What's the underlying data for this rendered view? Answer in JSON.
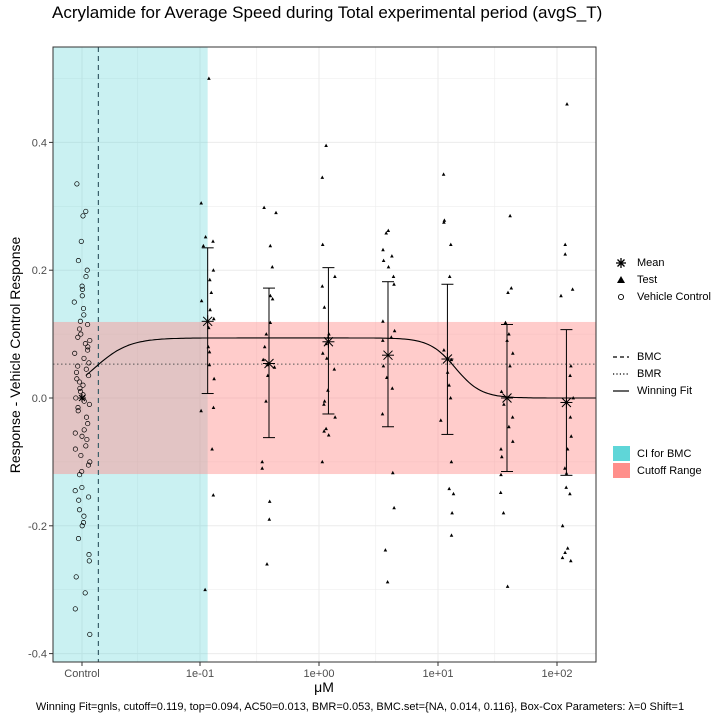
{
  "chart_data": {
    "type": "scatter",
    "title": "Acrylamide for Average Speed during Total experimental period (avgS_T)",
    "xlabel": "μM",
    "ylabel": "Response - Vehicle Control Response",
    "x_scale": "log10",
    "x_tick_labels": [
      "Control",
      "1e-01",
      "1e+00",
      "1e+01",
      "1e+02"
    ],
    "x_tick_values": [
      null,
      0.1,
      1,
      10,
      100
    ],
    "y_ticks": [
      -0.4,
      -0.2,
      0.0,
      0.2,
      0.4
    ],
    "y_tick_labels": [
      "-0.4",
      "-0.2",
      "0.0",
      "0.2",
      "0.4"
    ],
    "ylim": [
      -0.41,
      0.54
    ],
    "grid": true,
    "bmc": 0.014,
    "bmr": 0.053,
    "ci_for_bmc": [
      null,
      0.116
    ],
    "cutoff": 0.119,
    "concentrations": [
      0.116,
      0.38,
      1.2,
      3.8,
      12,
      38,
      120
    ],
    "means": [
      {
        "x": 0.116,
        "mean": 0.12,
        "low": 0.007,
        "high": 0.235
      },
      {
        "x": 0.38,
        "mean": 0.054,
        "low": -0.062,
        "high": 0.172
      },
      {
        "x": 1.2,
        "mean": 0.088,
        "low": -0.025,
        "high": 0.204
      },
      {
        "x": 3.8,
        "mean": 0.067,
        "low": -0.045,
        "high": 0.182
      },
      {
        "x": 12,
        "mean": 0.061,
        "low": -0.057,
        "high": 0.178
      },
      {
        "x": 38,
        "mean": 0.0,
        "low": -0.115,
        "high": 0.115
      },
      {
        "x": 120,
        "mean": -0.007,
        "low": -0.121,
        "high": 0.107
      }
    ],
    "control_mean": 0.0,
    "test_points": [
      {
        "x": 0.116,
        "y": [
          0.5,
          0.305,
          0.252,
          0.245,
          0.238,
          0.2,
          0.185,
          0.165,
          0.152,
          0.138,
          0.124,
          0.11,
          0.08,
          0.072,
          0.052,
          0.03,
          -0.015,
          -0.02,
          -0.08,
          -0.152,
          -0.3
        ]
      },
      {
        "x": 0.38,
        "y": [
          0.298,
          0.29,
          0.238,
          0.205,
          0.16,
          0.155,
          0.118,
          0.1,
          0.08,
          0.06,
          0.052,
          0.048,
          0.035,
          -0.005,
          -0.1,
          -0.11,
          -0.162,
          -0.19,
          -0.26
        ]
      },
      {
        "x": 1.2,
        "y": [
          0.395,
          0.345,
          0.24,
          0.19,
          0.175,
          0.142,
          0.1,
          0.095,
          0.085,
          0.07,
          0.062,
          0.045,
          0.012,
          -0.005,
          -0.01,
          -0.03,
          -0.048,
          -0.052,
          -0.058,
          -0.1
        ]
      },
      {
        "x": 3.8,
        "y": [
          0.262,
          0.258,
          0.232,
          0.222,
          0.215,
          0.205,
          0.19,
          0.178,
          0.12,
          0.105,
          0.095,
          0.09,
          0.05,
          0.032,
          0.015,
          -0.025,
          -0.117,
          -0.172,
          -0.238,
          -0.288
        ]
      },
      {
        "x": 12,
        "y": [
          0.35,
          0.278,
          0.275,
          0.24,
          0.19,
          0.075,
          0.06,
          0.04,
          0.02,
          0.0,
          -0.035,
          -0.1,
          -0.142,
          -0.15,
          -0.18,
          -0.215
        ]
      },
      {
        "x": 38,
        "y": [
          0.285,
          0.172,
          0.165,
          0.118,
          0.1,
          0.09,
          0.07,
          0.05,
          0.01,
          -0.01,
          -0.03,
          -0.045,
          -0.068,
          -0.08,
          -0.092,
          -0.12,
          -0.148,
          -0.18,
          -0.295
        ]
      },
      {
        "x": 120,
        "y": [
          0.46,
          0.24,
          0.225,
          0.17,
          0.16,
          0.05,
          0.035,
          0.0,
          -0.03,
          -0.06,
          -0.08,
          -0.11,
          -0.118,
          -0.14,
          -0.15,
          -0.2,
          -0.235,
          -0.242,
          -0.25,
          -0.255
        ]
      }
    ],
    "control_points": [
      0.335,
      0.292,
      0.285,
      0.245,
      0.215,
      0.2,
      0.19,
      0.175,
      0.17,
      0.16,
      0.15,
      0.14,
      0.13,
      0.12,
      0.115,
      0.108,
      0.1,
      0.095,
      0.09,
      0.085,
      0.08,
      0.075,
      0.07,
      0.062,
      0.055,
      0.05,
      0.045,
      0.04,
      0.035,
      0.03,
      0.025,
      0.02,
      0.015,
      0.01,
      0.005,
      0.0,
      -0.005,
      -0.01,
      -0.015,
      -0.02,
      -0.03,
      -0.04,
      -0.05,
      -0.055,
      -0.06,
      -0.065,
      -0.075,
      -0.08,
      -0.09,
      -0.1,
      -0.105,
      -0.115,
      -0.12,
      -0.14,
      -0.145,
      -0.155,
      -0.16,
      -0.175,
      -0.185,
      -0.195,
      -0.2,
      -0.22,
      -0.245,
      -0.255,
      -0.28,
      -0.305,
      -0.33,
      -0.37
    ],
    "winning_fit": {
      "model": "gnls",
      "top": 0.094,
      "ac50": 0.013,
      "loss_top_x": 12,
      "loss_ac50": 14
    },
    "legend": {
      "symbols": [
        "Mean",
        "Test",
        "Vehicle Control"
      ],
      "lines": [
        "BMC",
        "BMR",
        "Winning Fit"
      ],
      "fills": [
        "CI for BMC",
        "Cutoff Range"
      ],
      "placement": "right"
    },
    "colors": {
      "ci_fill": "#5fd6d8",
      "cutoff_fill": "#ff8f8b",
      "grid": "#ebebeb",
      "panel_border": "#333333",
      "bmc_line": "#3a5f6a"
    }
  },
  "footnote": "Winning Fit=gnls, cutoff=0.119, top=0.094, AC50=0.013, BMR=0.053, BMC.set={NA, 0.014, 0.116}, Box-Cox Parameters: λ=0 Shift=1"
}
